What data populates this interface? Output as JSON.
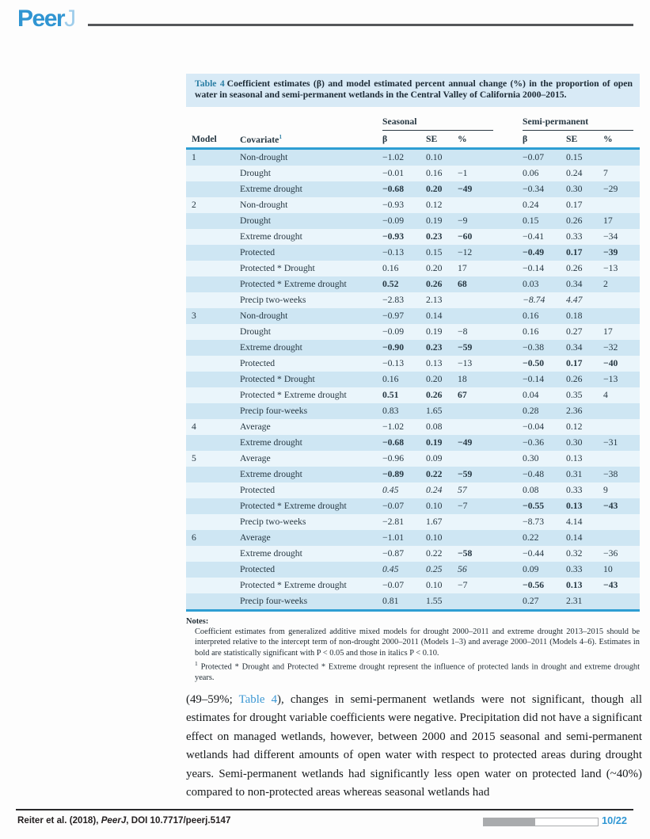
{
  "brand": {
    "logo_peer": "Peer",
    "logo_j": "J"
  },
  "colors": {
    "accent_blue": "#3095d2",
    "table_rule_blue": "#2e9ed3",
    "caption_bg": "#d8eaf6",
    "caption_label": "#2c7fa5",
    "stripe_dark": "#cee6f3",
    "stripe_light": "#eaf5fb",
    "link_blue": "#3b97d3",
    "progress_gray": "#a9abad"
  },
  "table": {
    "caption_label": "Table 4",
    "caption_text": "Coefficient estimates (β) and model estimated percent annual change (%) in the proportion of open water in seasonal and semi-permanent wetlands in the Central Valley of California 2000–2015.",
    "group_headers": {
      "seasonal": "Seasonal",
      "semi": "Semi-permanent"
    },
    "col_headers": {
      "model": "Model",
      "covariate": "Covariate",
      "covariate_sup": "1",
      "beta": "β",
      "se": "SE",
      "pct": "%"
    },
    "rows": [
      {
        "model": "1",
        "cov": "Non-drought",
        "sea": [
          "−1.02",
          "0.10",
          ""
        ],
        "semi": [
          "−0.07",
          "0.15",
          ""
        ]
      },
      {
        "model": "",
        "cov": "Drought",
        "sea": [
          "−0.01",
          "0.16",
          "−1"
        ],
        "semi": [
          "0.06",
          "0.24",
          "7"
        ]
      },
      {
        "model": "",
        "cov": "Extreme drought",
        "sea": [
          "−0.68",
          "0.20",
          "−49"
        ],
        "sea_s": [
          "b",
          "b",
          "b"
        ],
        "semi": [
          "−0.34",
          "0.30",
          "−29"
        ]
      },
      {
        "model": "2",
        "cov": "Non-drought",
        "sea": [
          "−0.93",
          "0.12",
          ""
        ],
        "semi": [
          "0.24",
          "0.17",
          ""
        ]
      },
      {
        "model": "",
        "cov": "Drought",
        "sea": [
          "−0.09",
          "0.19",
          "−9"
        ],
        "semi": [
          "0.15",
          "0.26",
          "17"
        ]
      },
      {
        "model": "",
        "cov": "Extreme drought",
        "sea": [
          "−0.93",
          "0.23",
          "−60"
        ],
        "sea_s": [
          "b",
          "b",
          "b"
        ],
        "semi": [
          "−0.41",
          "0.33",
          "−34"
        ]
      },
      {
        "model": "",
        "cov": "Protected",
        "sea": [
          "−0.13",
          "0.15",
          "−12"
        ],
        "semi": [
          "−0.49",
          "0.17",
          "−39"
        ],
        "semi_s": [
          "b",
          "b",
          "b"
        ]
      },
      {
        "model": "",
        "cov": "Protected * Drought",
        "sea": [
          "0.16",
          "0.20",
          "17"
        ],
        "semi": [
          "−0.14",
          "0.26",
          "−13"
        ]
      },
      {
        "model": "",
        "cov": "Protected * Extreme drought",
        "sea": [
          "0.52",
          "0.26",
          "68"
        ],
        "sea_s": [
          "b",
          "b",
          "b"
        ],
        "semi": [
          "0.03",
          "0.34",
          "2"
        ]
      },
      {
        "model": "",
        "cov": "Precip two-weeks",
        "sea": [
          "−2.83",
          "2.13",
          ""
        ],
        "semi": [
          "−8.74",
          "4.47",
          ""
        ],
        "semi_s": [
          "i",
          "i",
          ""
        ]
      },
      {
        "model": "3",
        "cov": "Non-drought",
        "sea": [
          "−0.97",
          "0.14",
          ""
        ],
        "semi": [
          "0.16",
          "0.18",
          ""
        ]
      },
      {
        "model": "",
        "cov": "Drought",
        "sea": [
          "−0.09",
          "0.19",
          "−8"
        ],
        "semi": [
          "0.16",
          "0.27",
          "17"
        ]
      },
      {
        "model": "",
        "cov": "Extreme drought",
        "sea": [
          "−0.90",
          "0.23",
          "−59"
        ],
        "sea_s": [
          "b",
          "b",
          "b"
        ],
        "semi": [
          "−0.38",
          "0.34",
          "−32"
        ]
      },
      {
        "model": "",
        "cov": "Protected",
        "sea": [
          "−0.13",
          "0.13",
          "−13"
        ],
        "semi": [
          "−0.50",
          "0.17",
          "−40"
        ],
        "semi_s": [
          "b",
          "b",
          "b"
        ]
      },
      {
        "model": "",
        "cov": "Protected * Drought",
        "sea": [
          "0.16",
          "0.20",
          "18"
        ],
        "semi": [
          "−0.14",
          "0.26",
          "−13"
        ]
      },
      {
        "model": "",
        "cov": "Protected * Extreme drought",
        "sea": [
          "0.51",
          "0.26",
          "67"
        ],
        "sea_s": [
          "b",
          "b",
          "b"
        ],
        "semi": [
          "0.04",
          "0.35",
          "4"
        ]
      },
      {
        "model": "",
        "cov": "Precip four-weeks",
        "sea": [
          "0.83",
          "1.65",
          ""
        ],
        "semi": [
          "0.28",
          "2.36",
          ""
        ]
      },
      {
        "model": "4",
        "cov": "Average",
        "sea": [
          "−1.02",
          "0.08",
          ""
        ],
        "semi": [
          "−0.04",
          "0.12",
          ""
        ]
      },
      {
        "model": "",
        "cov": "Extreme drought",
        "sea": [
          "−0.68",
          "0.19",
          "−49"
        ],
        "sea_s": [
          "b",
          "b",
          "b"
        ],
        "semi": [
          "−0.36",
          "0.30",
          "−31"
        ]
      },
      {
        "model": "5",
        "cov": "Average",
        "sea": [
          "−0.96",
          "0.09",
          ""
        ],
        "semi": [
          "0.30",
          "0.13",
          ""
        ]
      },
      {
        "model": "",
        "cov": "Extreme drought",
        "sea": [
          "−0.89",
          "0.22",
          "−59"
        ],
        "sea_s": [
          "b",
          "b",
          "b"
        ],
        "semi": [
          "−0.48",
          "0.31",
          "−38"
        ]
      },
      {
        "model": "",
        "cov": "Protected",
        "sea": [
          "0.45",
          "0.24",
          "57"
        ],
        "sea_s": [
          "i",
          "i",
          "i"
        ],
        "semi": [
          "0.08",
          "0.33",
          "9"
        ]
      },
      {
        "model": "",
        "cov": "Protected * Extreme drought",
        "sea": [
          "−0.07",
          "0.10",
          "−7"
        ],
        "semi": [
          "−0.55",
          "0.13",
          "−43"
        ],
        "semi_s": [
          "b",
          "b",
          "b"
        ]
      },
      {
        "model": "",
        "cov": "Precip two-weeks",
        "sea": [
          "−2.81",
          "1.67",
          ""
        ],
        "semi": [
          "−8.73",
          "4.14",
          ""
        ]
      },
      {
        "model": "6",
        "cov": "Average",
        "sea": [
          "−1.01",
          "0.10",
          ""
        ],
        "semi": [
          "0.22",
          "0.14",
          ""
        ]
      },
      {
        "model": "",
        "cov": "Extreme drought",
        "sea": [
          "−0.87",
          "0.22",
          "−58"
        ],
        "sea_s": [
          "",
          "",
          "b"
        ],
        "semi": [
          "−0.44",
          "0.32",
          "−36"
        ]
      },
      {
        "model": "",
        "cov": "Protected",
        "sea": [
          "0.45",
          "0.25",
          "56"
        ],
        "sea_s": [
          "i",
          "i",
          "i"
        ],
        "semi": [
          "0.09",
          "0.33",
          "10"
        ]
      },
      {
        "model": "",
        "cov": "Protected * Extreme drought",
        "sea": [
          "−0.07",
          "0.10",
          "−7"
        ],
        "semi": [
          "−0.56",
          "0.13",
          "−43"
        ],
        "semi_s": [
          "b",
          "b",
          "b"
        ]
      },
      {
        "model": "",
        "cov": "Precip four-weeks",
        "sea": [
          "0.81",
          "1.55",
          ""
        ],
        "semi": [
          "0.27",
          "2.31",
          ""
        ]
      }
    ]
  },
  "notes": {
    "title": "Notes:",
    "general": "Coefficient estimates from generalized additive mixed models for drought 2000–2011 and extreme drought 2013–2015 should be interpreted relative to the intercept term of non-drought 2000–2011 (Models 1–3) and average 2000–2011 (Models 4–6). Estimates in bold are statistically significant with P < 0.05 and those in italics P < 0.10.",
    "footnote_marker": "1",
    "footnote": "Protected * Drought and Protected * Extreme drought represent the influence of protected lands in drought and extreme drought years."
  },
  "body": {
    "pre_link": "(49–59%; ",
    "link_text": "Table 4",
    "post_link": "), changes in semi-permanent wetlands were not significant, though all estimates for drought variable coefficients were negative. Precipitation did not have a significant effect on managed wetlands, however, between 2000 and 2015 seasonal and semi-permanent wetlands had different amounts of open water with respect to protected areas during drought years. Semi-permanent wetlands had significantly less open water on protected land (~40%) compared to non-protected areas whereas seasonal wetlands had"
  },
  "footer": {
    "citation_pre": "Reiter et al. (2018), ",
    "journal": "PeerJ",
    "citation_post": ", DOI 10.7717/peerj.5147",
    "page_indicator": "10/22",
    "progress_percent": 45
  }
}
